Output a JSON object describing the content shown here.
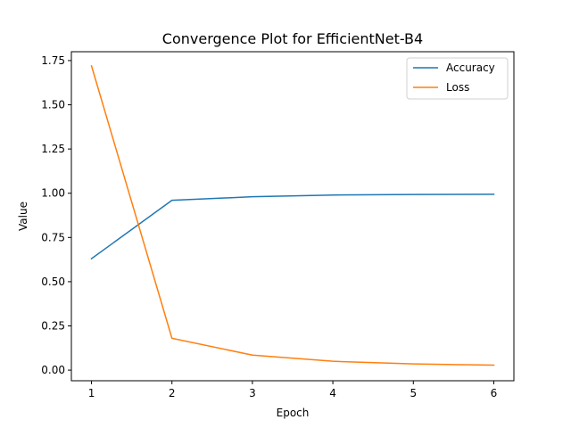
{
  "chart_data": {
    "type": "line",
    "title": "Convergence Plot for EfficientNet-B4",
    "xlabel": "Epoch",
    "ylabel": "Value",
    "x": [
      1,
      2,
      3,
      4,
      5,
      6
    ],
    "xticks": [
      "1",
      "2",
      "3",
      "4",
      "5",
      "6"
    ],
    "yticks": [
      0.0,
      0.25,
      0.5,
      0.75,
      1.0,
      1.25,
      1.5,
      1.75
    ],
    "ytick_labels": [
      "0.00",
      "0.25",
      "0.50",
      "0.75",
      "1.00",
      "1.25",
      "1.50",
      "1.75"
    ],
    "xlim": [
      0.75,
      6.25
    ],
    "ylim": [
      -0.06,
      1.8
    ],
    "grid": false,
    "legend_position": "top-right",
    "series": [
      {
        "name": "Accuracy",
        "color": "#1f77b4",
        "values": [
          0.63,
          0.96,
          0.98,
          0.99,
          0.993,
          0.994
        ]
      },
      {
        "name": "Loss",
        "color": "#ff7f0e",
        "values": [
          1.72,
          0.18,
          0.085,
          0.05,
          0.035,
          0.028
        ]
      }
    ]
  }
}
